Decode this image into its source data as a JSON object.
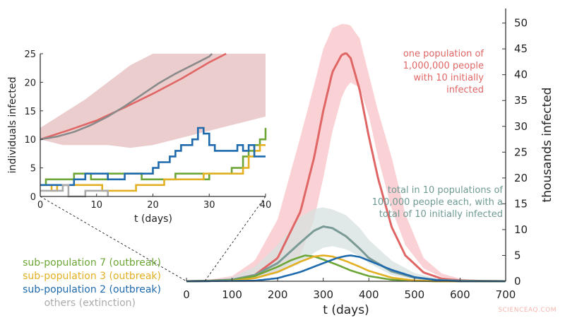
{
  "chart_data": [
    {
      "type": "line",
      "xlabel": "t (days)",
      "ylabel": "thousands infected",
      "xlim": [
        0,
        700
      ],
      "ylim": [
        0,
        52
      ],
      "xticks": [
        "0",
        "100",
        "200",
        "300",
        "400",
        "500",
        "600",
        "700"
      ],
      "yticks": [
        "0",
        "5",
        "10",
        "15",
        "20",
        "25",
        "30",
        "35",
        "40",
        "45",
        "50"
      ],
      "grid": false,
      "y_axis_side": "right",
      "series": [
        {
          "key": "one_population",
          "color": "#e06666",
          "band_color": "#f9c9cc",
          "x": [
            0,
            50,
            100,
            150,
            200,
            250,
            280,
            300,
            320,
            340,
            350,
            360,
            380,
            400,
            420,
            450,
            480,
            520,
            560,
            600,
            650,
            700
          ],
          "y": [
            0,
            0.1,
            0.3,
            1.2,
            4.5,
            13.5,
            24,
            33,
            40.5,
            43.8,
            44.2,
            43.2,
            37,
            28,
            20,
            10.5,
            5,
            1.7,
            0.5,
            0.15,
            0.05,
            0
          ],
          "band_low": [
            0,
            0,
            0.1,
            0.4,
            1.8,
            5,
            12,
            20,
            29,
            35.5,
            37.5,
            38.5,
            37.5,
            32,
            24,
            14,
            7,
            2.5,
            0.8,
            0.25,
            0.1,
            0
          ],
          "band_high": [
            0,
            0.3,
            1,
            4,
            12,
            28,
            38,
            45,
            49,
            49.8,
            49.8,
            49.5,
            47,
            40,
            33,
            24,
            13,
            4.5,
            1.5,
            0.5,
            0.15,
            0
          ]
        },
        {
          "key": "total_10_populations",
          "color": "#7a9a96",
          "band_color": "#d6e2e0",
          "x": [
            0,
            50,
            100,
            150,
            200,
            250,
            280,
            300,
            320,
            350,
            380,
            400,
            450,
            500,
            550,
            600,
            650,
            700
          ],
          "y": [
            0,
            0.05,
            0.3,
            1.2,
            3.5,
            7.5,
            9.8,
            10.6,
            10.3,
            8.7,
            6.3,
            4.5,
            1.9,
            0.7,
            0.25,
            0.1,
            0.03,
            0
          ],
          "band_low": [
            0,
            0,
            0.1,
            0.4,
            1.5,
            3.5,
            5.5,
            6.5,
            6.8,
            6.2,
            4.8,
            3.5,
            1.2,
            0.4,
            0.1,
            0.05,
            0.01,
            0
          ],
          "band_high": [
            0,
            0.2,
            0.8,
            2.8,
            7,
            12.5,
            14,
            14.3,
            13.9,
            12.8,
            10.3,
            8,
            4,
            1.6,
            0.5,
            0.2,
            0.05,
            0
          ]
        },
        {
          "key": "sub7",
          "color": "#6da637",
          "x": [
            0,
            100,
            150,
            200,
            230,
            260,
            280,
            300,
            330,
            360,
            400,
            450,
            500,
            550
          ],
          "y": [
            0,
            0.2,
            1,
            2.8,
            4.1,
            5,
            4.8,
            4.2,
            3.2,
            2.1,
            1,
            0.3,
            0.08,
            0
          ]
        },
        {
          "key": "sub3",
          "color": "#e3b024",
          "x": [
            0,
            100,
            150,
            200,
            250,
            280,
            300,
            320,
            350,
            380,
            400,
            450,
            500,
            550
          ],
          "y": [
            0,
            0.1,
            0.6,
            1.8,
            3.8,
            4.8,
            5,
            4.8,
            3.9,
            2.8,
            2,
            0.7,
            0.15,
            0
          ]
        },
        {
          "key": "sub2",
          "color": "#1e6aad",
          "x": [
            0,
            150,
            200,
            250,
            300,
            330,
            350,
            360,
            380,
            400,
            450,
            500,
            550,
            600
          ],
          "y": [
            0,
            0.1,
            0.6,
            1.8,
            3.5,
            4.5,
            4.9,
            5,
            4.7,
            4,
            2.2,
            0.8,
            0.2,
            0
          ]
        }
      ],
      "annotations": [
        "one population of",
        "1,000,000 people",
        "with 10 initially",
        "infected",
        "total in 10 populations of",
        "100,000 people each, with a",
        "total of 10 initially infected"
      ]
    },
    {
      "type": "line",
      "xlabel": "t (days)",
      "ylabel": "individuals infected",
      "xlim": [
        0,
        40
      ],
      "ylim": [
        0,
        25
      ],
      "xticks": [
        "0",
        "10",
        "20",
        "30",
        "40"
      ],
      "yticks": [
        "0",
        "5",
        "10",
        "15",
        "20",
        "25"
      ],
      "series": [
        {
          "key": "one_population",
          "color": "#e06666",
          "band_color": "#e8c4c4",
          "x": [
            0,
            5,
            10,
            15,
            20,
            25,
            30,
            33
          ],
          "y": [
            10,
            11.6,
            13.3,
            15.6,
            18,
            20.6,
            23.5,
            25
          ],
          "band_low": [
            10,
            9,
            9,
            9,
            8.5,
            9,
            10,
            11,
            12,
            13,
            14
          ],
          "band_high": [
            12,
            14.5,
            17,
            20,
            23,
            25,
            25,
            25,
            25,
            25,
            25
          ],
          "band_x": [
            0,
            4,
            8,
            12,
            16,
            20,
            24,
            28,
            32,
            36,
            40
          ]
        },
        {
          "key": "total_10_populations",
          "color": "#8a8a8a",
          "x": [
            0,
            3,
            6,
            9,
            12,
            15,
            18,
            21,
            24,
            27,
            30,
            30.5
          ],
          "y": [
            10,
            10.5,
            11.3,
            12.5,
            14,
            15.8,
            17.8,
            19.8,
            21.5,
            23,
            24.5,
            25
          ],
          "step": false
        },
        {
          "key": "sub7",
          "color": "#6da637",
          "step": true,
          "x": [
            0,
            1,
            5,
            6,
            9,
            12,
            17,
            18,
            23,
            24,
            26,
            29,
            30,
            32,
            34,
            35,
            36,
            37,
            38,
            39,
            40
          ],
          "y": [
            2,
            3,
            3,
            4,
            3,
            4,
            4,
            3,
            3,
            4,
            4,
            3,
            4,
            4,
            5,
            5,
            7,
            8,
            9,
            10,
            12
          ]
        },
        {
          "key": "sub3",
          "color": "#e3b024",
          "step": true,
          "x": [
            0,
            2,
            3,
            6,
            9,
            11,
            16,
            17,
            19,
            22,
            24,
            27,
            29,
            32,
            34,
            36,
            37,
            38,
            39,
            40
          ],
          "y": [
            2,
            1,
            2,
            2,
            2,
            1,
            1,
            2,
            2,
            3,
            3,
            3,
            4,
            4,
            4,
            5,
            7,
            8,
            9,
            9
          ]
        },
        {
          "key": "sub2",
          "color": "#1e6aad",
          "step": true,
          "x": [
            0,
            4,
            6,
            8,
            10,
            12,
            15,
            17,
            20,
            21,
            23,
            24,
            25,
            27,
            28,
            29,
            30,
            31,
            33,
            35,
            36,
            37,
            38,
            40
          ],
          "y": [
            2,
            2,
            3,
            4,
            4,
            3,
            4,
            4,
            5,
            6,
            7,
            8,
            9,
            10,
            12,
            11,
            9,
            8,
            8,
            9,
            8,
            9,
            7,
            7
          ]
        },
        {
          "key": "others",
          "color": "#aaaaaa",
          "step": true,
          "x": [
            0,
            3,
            4,
            5,
            8,
            12
          ],
          "y": [
            1,
            1,
            2,
            0,
            1,
            0
          ]
        }
      ]
    }
  ],
  "legend": [
    {
      "label": "sub-population 7 (outbreak)",
      "color": "#6da637"
    },
    {
      "label": "sub-population 3 (outbreak)",
      "color": "#e3b024"
    },
    {
      "label": "sub-population 2 (outbreak)",
      "color": "#1e6aad"
    },
    {
      "label": "others (extinction)",
      "color": "#aaaaaa"
    }
  ],
  "watermark": "SCIENCEAQ.COM"
}
